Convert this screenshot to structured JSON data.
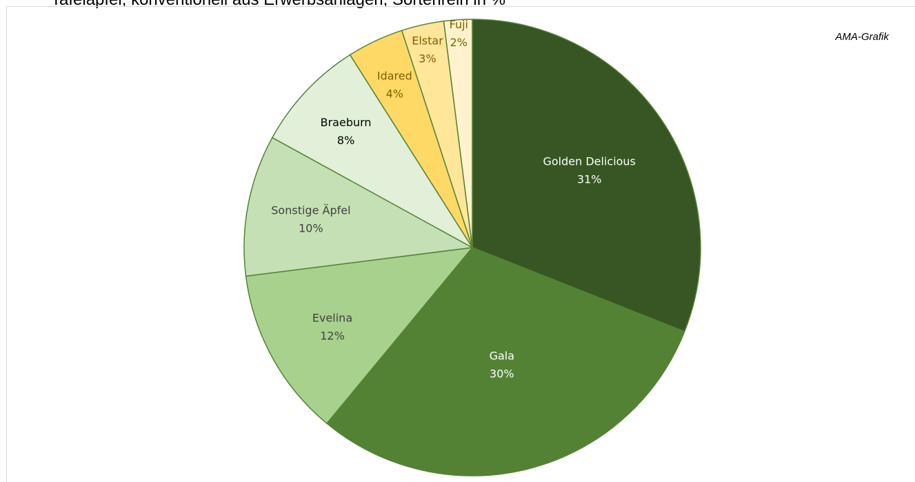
{
  "chart_data": {
    "type": "pie",
    "title": "Tafeläpfel, konventionell aus Erwerbsanlagen, Sortenrein in %",
    "source_note": "AMA-Grafik",
    "slices": [
      {
        "label": "Golden Delicious",
        "value": 31,
        "value_label": "31%",
        "color": "#375623",
        "text_color": "#ffffff"
      },
      {
        "label": "Gala",
        "value": 30,
        "value_label": "30%",
        "color": "#548235",
        "text_color": "#ffffff"
      },
      {
        "label": "Evelina",
        "value": 12,
        "value_label": "12%",
        "color": "#a9d18e",
        "text_color": "#404040"
      },
      {
        "label": "Sonstige Äpfel",
        "value": 10,
        "value_label": "10%",
        "color": "#c5e0b4",
        "text_color": "#404040"
      },
      {
        "label": "Braeburn",
        "value": 8,
        "value_label": "8%",
        "color": "#e2efd9",
        "text_color": "#000000"
      },
      {
        "label": "Idared",
        "value": 4,
        "value_label": "4%",
        "color": "#ffd966",
        "text_color": "#7f6000"
      },
      {
        "label": "Elstar",
        "value": 3,
        "value_label": "3%",
        "color": "#ffe699",
        "text_color": "#7f6000"
      },
      {
        "label": "Fuji",
        "value": 2,
        "value_label": "2%",
        "color": "#fff2cc",
        "text_color": "#7f6000"
      }
    ],
    "start": "12 o'clock",
    "direction": "clockwise",
    "slice_border_color": "#548235"
  }
}
